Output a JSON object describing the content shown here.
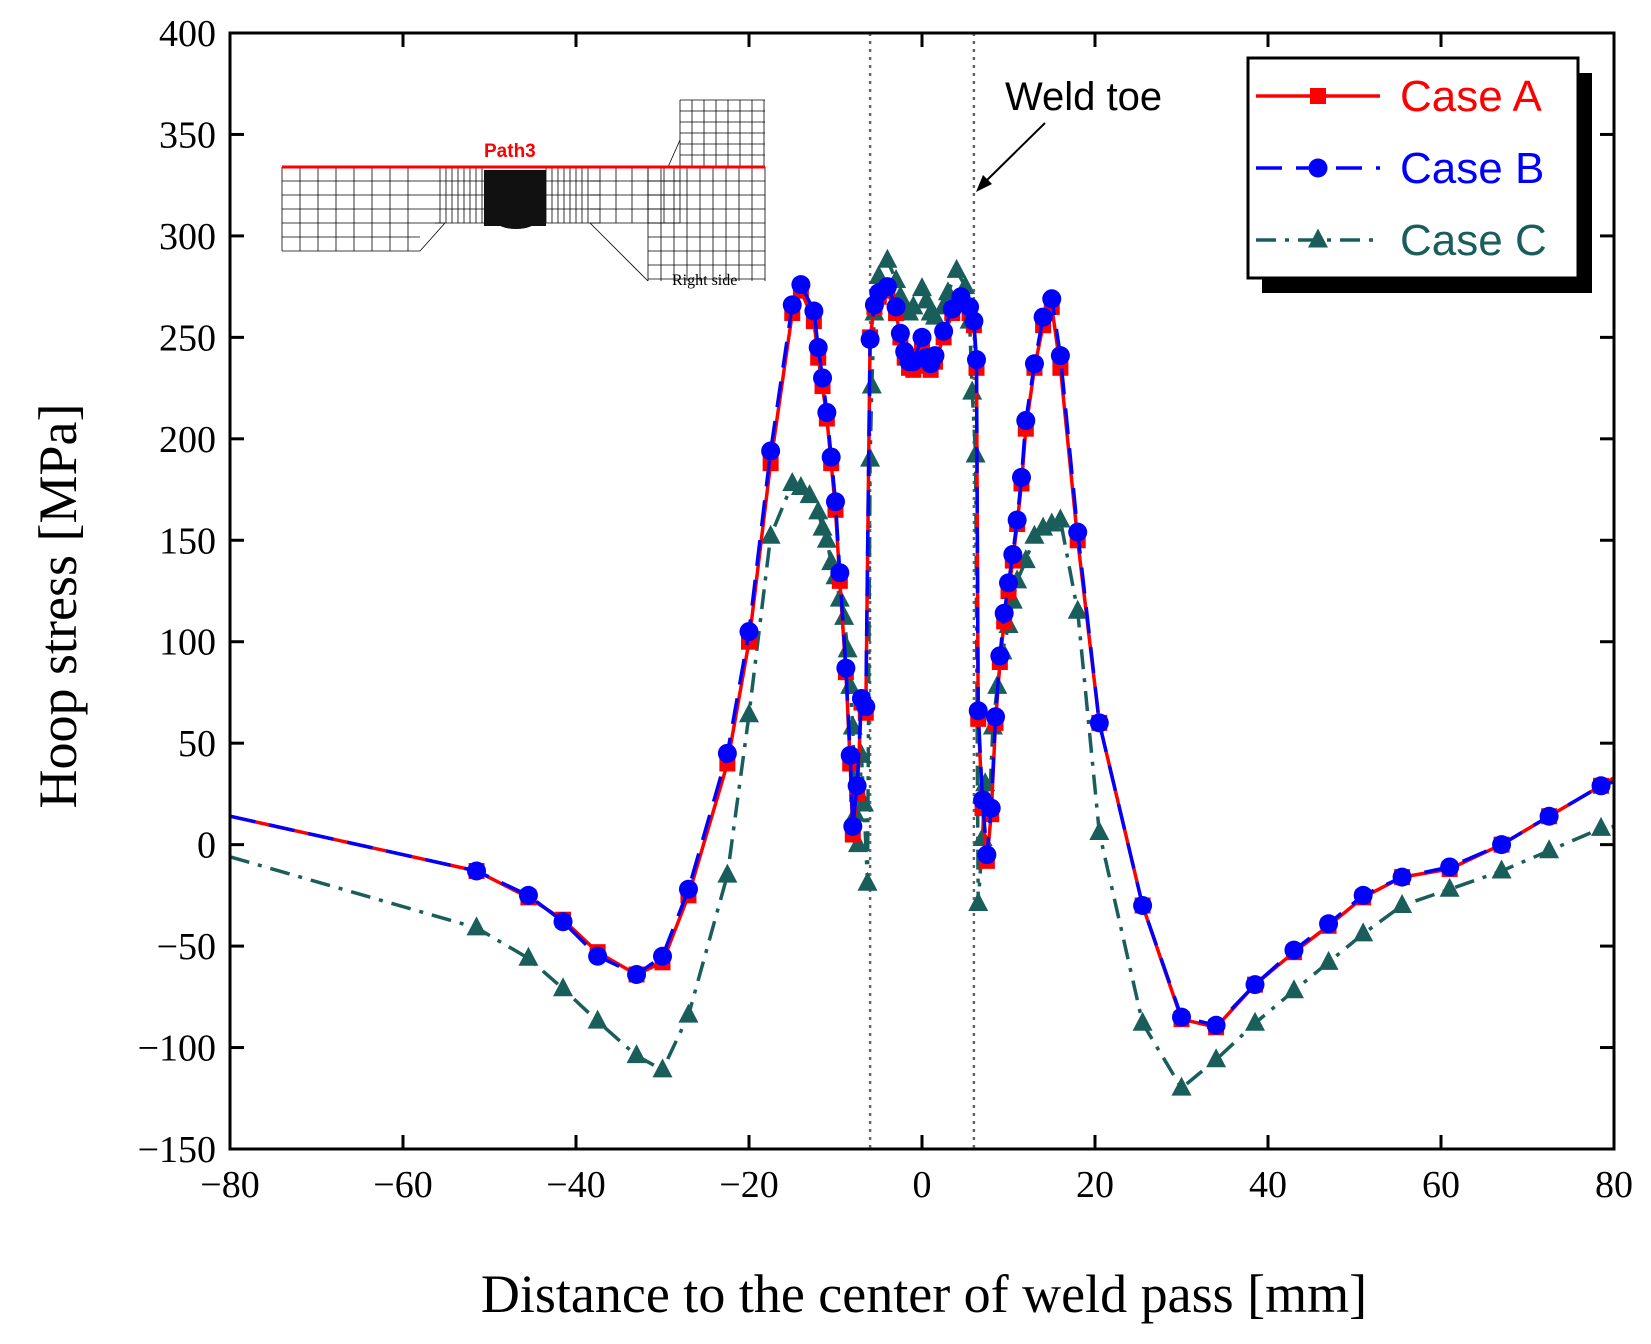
{
  "chart_data": {
    "type": "line",
    "title": "",
    "xlabel": "Distance to the center of weld pass [mm]",
    "ylabel": "Hoop stress [MPa]",
    "xlim": [
      -80,
      80
    ],
    "ylim": [
      -150,
      400
    ],
    "xticks": [
      -80,
      -60,
      -40,
      -20,
      0,
      20,
      40,
      60,
      80
    ],
    "yticks": [
      -150,
      -100,
      -50,
      0,
      50,
      100,
      150,
      200,
      250,
      300,
      350,
      400
    ],
    "xtick_labels": [
      "−80",
      "−60",
      "−40",
      "−20",
      "0",
      "20",
      "40",
      "60",
      "80"
    ],
    "ytick_labels": [
      "−150",
      "−100",
      "−50",
      "0",
      "50",
      "100",
      "150",
      "200",
      "250",
      "300",
      "350",
      "400"
    ],
    "grid": false,
    "legend_position": "top-right",
    "reference_lines_x": [
      -6,
      6
    ],
    "annotation": {
      "text": "Weld toe",
      "points_to_x": 6,
      "points_to_y": 315
    },
    "inset": {
      "path_label": "Path3",
      "side_label": "Right side"
    },
    "series": [
      {
        "name": "Case A",
        "color": "#ff0000",
        "marker": "square",
        "dash": "solid",
        "points": [
          [
            -80,
            14
          ],
          [
            -51.5,
            -13
          ],
          [
            -45.5,
            -26
          ],
          [
            -41.5,
            -37
          ],
          [
            -37.5,
            -53
          ],
          [
            -33,
            -64
          ],
          [
            -30,
            -58
          ],
          [
            -27,
            -25
          ],
          [
            -22.5,
            40
          ],
          [
            -20,
            100
          ],
          [
            -17.5,
            188
          ],
          [
            -15,
            262
          ],
          [
            -14,
            273
          ],
          [
            -12.5,
            258
          ],
          [
            -12,
            240
          ],
          [
            -11.5,
            226
          ],
          [
            -11,
            210
          ],
          [
            -10.5,
            188
          ],
          [
            -10,
            165
          ],
          [
            -9.5,
            130
          ],
          [
            -8.8,
            85
          ],
          [
            -8.3,
            40
          ],
          [
            -8,
            5
          ],
          [
            -7.5,
            25
          ],
          [
            -7,
            70
          ],
          [
            -6.5,
            65
          ],
          [
            -6,
            250
          ],
          [
            -5.5,
            265
          ],
          [
            -5,
            270
          ],
          [
            -4,
            273
          ],
          [
            -3,
            262
          ],
          [
            -2.5,
            250
          ],
          [
            -2,
            240
          ],
          [
            -1.5,
            235
          ],
          [
            -1,
            234
          ],
          [
            0,
            244
          ],
          [
            0.5,
            236
          ],
          [
            1,
            234
          ],
          [
            1.5,
            238
          ],
          [
            2.5,
            250
          ],
          [
            3.5,
            262
          ],
          [
            4.5,
            268
          ],
          [
            5.5,
            262
          ],
          [
            6,
            256
          ],
          [
            6.3,
            235
          ],
          [
            6.5,
            62
          ],
          [
            7,
            18
          ],
          [
            7.5,
            -8
          ],
          [
            8,
            15
          ],
          [
            8.5,
            60
          ],
          [
            9,
            90
          ],
          [
            9.5,
            110
          ],
          [
            10,
            125
          ],
          [
            10.5,
            140
          ],
          [
            11,
            158
          ],
          [
            11.5,
            178
          ],
          [
            12,
            205
          ],
          [
            13,
            235
          ],
          [
            14,
            256
          ],
          [
            15,
            265
          ],
          [
            16,
            235
          ],
          [
            18,
            150
          ],
          [
            20.5,
            60
          ],
          [
            25.5,
            -30
          ],
          [
            30,
            -86
          ],
          [
            34,
            -90
          ],
          [
            38.5,
            -69
          ],
          [
            43,
            -53
          ],
          [
            47,
            -40
          ],
          [
            51,
            -26
          ],
          [
            55.5,
            -16
          ],
          [
            61,
            -12
          ],
          [
            67,
            0
          ],
          [
            72.5,
            14
          ],
          [
            78.5,
            29
          ],
          [
            80,
            33
          ]
        ]
      },
      {
        "name": "Case B",
        "color": "#0000ff",
        "marker": "circle",
        "dash": "dashed",
        "points": [
          [
            -80,
            14
          ],
          [
            -51.5,
            -13
          ],
          [
            -45.5,
            -25
          ],
          [
            -41.5,
            -38
          ],
          [
            -37.5,
            -55
          ],
          [
            -33,
            -64
          ],
          [
            -30,
            -55
          ],
          [
            -27,
            -22
          ],
          [
            -22.5,
            45
          ],
          [
            -20,
            105
          ],
          [
            -17.5,
            194
          ],
          [
            -15,
            266
          ],
          [
            -14,
            276
          ],
          [
            -12.5,
            263
          ],
          [
            -12,
            245
          ],
          [
            -11.5,
            230
          ],
          [
            -11,
            213
          ],
          [
            -10.5,
            191
          ],
          [
            -10,
            169
          ],
          [
            -9.5,
            134
          ],
          [
            -8.8,
            87
          ],
          [
            -8.3,
            44
          ],
          [
            -8,
            9
          ],
          [
            -7.5,
            29
          ],
          [
            -7,
            72
          ],
          [
            -6.5,
            68
          ],
          [
            -6,
            249
          ],
          [
            -5.5,
            266
          ],
          [
            -5,
            272
          ],
          [
            -4,
            275
          ],
          [
            -3,
            265
          ],
          [
            -2.5,
            252
          ],
          [
            -2,
            243
          ],
          [
            -1.5,
            238
          ],
          [
            -1,
            238
          ],
          [
            0,
            250
          ],
          [
            0.5,
            240
          ],
          [
            1,
            237
          ],
          [
            1.5,
            241
          ],
          [
            2.5,
            253
          ],
          [
            3.5,
            264
          ],
          [
            4.5,
            270
          ],
          [
            5.5,
            265
          ],
          [
            6,
            258
          ],
          [
            6.3,
            239
          ],
          [
            6.5,
            66
          ],
          [
            7,
            22
          ],
          [
            7.5,
            -5
          ],
          [
            8,
            18
          ],
          [
            8.5,
            63
          ],
          [
            9,
            93
          ],
          [
            9.5,
            114
          ],
          [
            10,
            129
          ],
          [
            10.5,
            143
          ],
          [
            11,
            160
          ],
          [
            11.5,
            181
          ],
          [
            12,
            209
          ],
          [
            13,
            237
          ],
          [
            14,
            260
          ],
          [
            15,
            269
          ],
          [
            16,
            241
          ],
          [
            18,
            154
          ],
          [
            20.5,
            60
          ],
          [
            25.5,
            -30
          ],
          [
            30,
            -85
          ],
          [
            34,
            -89
          ],
          [
            38.5,
            -69
          ],
          [
            43,
            -52
          ],
          [
            47,
            -39
          ],
          [
            51,
            -25
          ],
          [
            55.5,
            -16
          ],
          [
            61,
            -11
          ],
          [
            67,
            0
          ],
          [
            72.5,
            14
          ],
          [
            78.5,
            29
          ],
          [
            80,
            31
          ]
        ]
      },
      {
        "name": "Case C",
        "color": "#1a5e5c",
        "marker": "triangle",
        "dash": "dashdot",
        "points": [
          [
            -80,
            -6
          ],
          [
            -51.5,
            -41
          ],
          [
            -45.5,
            -56
          ],
          [
            -41.5,
            -71
          ],
          [
            -37.5,
            -87
          ],
          [
            -33,
            -104
          ],
          [
            -30,
            -111
          ],
          [
            -27,
            -84
          ],
          [
            -22.5,
            -15
          ],
          [
            -20,
            64
          ],
          [
            -17.5,
            152
          ],
          [
            -15,
            178
          ],
          [
            -14,
            176
          ],
          [
            -13,
            172
          ],
          [
            -12,
            164
          ],
          [
            -11.5,
            156
          ],
          [
            -11,
            150
          ],
          [
            -10.5,
            139
          ],
          [
            -10,
            132
          ],
          [
            -9.5,
            121
          ],
          [
            -9,
            112
          ],
          [
            -8.6,
            96
          ],
          [
            -8.3,
            78
          ],
          [
            -8,
            58
          ],
          [
            -7.7,
            15
          ],
          [
            -7.4,
            0
          ],
          [
            -7,
            44
          ],
          [
            -6.7,
            20
          ],
          [
            -6.3,
            -19
          ],
          [
            -6,
            190
          ],
          [
            -5.8,
            226
          ],
          [
            -5.5,
            262
          ],
          [
            -5,
            280
          ],
          [
            -4,
            288
          ],
          [
            -3,
            278
          ],
          [
            -2.5,
            270
          ],
          [
            -2,
            265
          ],
          [
            -1.5,
            262
          ],
          [
            -1,
            265
          ],
          [
            0,
            274
          ],
          [
            0.5,
            268
          ],
          [
            1,
            262
          ],
          [
            1.5,
            260
          ],
          [
            2.5,
            265
          ],
          [
            3,
            272
          ],
          [
            4,
            283
          ],
          [
            5,
            275
          ],
          [
            5.5,
            258
          ],
          [
            5.8,
            223
          ],
          [
            6.2,
            192
          ],
          [
            6.5,
            -29
          ],
          [
            7,
            3
          ],
          [
            7.3,
            30
          ],
          [
            7.8,
            20
          ],
          [
            8.2,
            58
          ],
          [
            8.7,
            78
          ],
          [
            9.3,
            95
          ],
          [
            10,
            108
          ],
          [
            10.5,
            120
          ],
          [
            11,
            130
          ],
          [
            12,
            140
          ],
          [
            13,
            152
          ],
          [
            14,
            156
          ],
          [
            15,
            158
          ],
          [
            16,
            160
          ],
          [
            18,
            115
          ],
          [
            20.5,
            6
          ],
          [
            25.5,
            -88
          ],
          [
            30,
            -120
          ],
          [
            34,
            -106
          ],
          [
            38.5,
            -88
          ],
          [
            43,
            -72
          ],
          [
            47,
            -58
          ],
          [
            51,
            -44
          ],
          [
            55.5,
            -30
          ],
          [
            61,
            -22
          ],
          [
            67,
            -13
          ],
          [
            72.5,
            -3
          ],
          [
            78.5,
            8
          ],
          [
            80,
            9
          ]
        ]
      }
    ]
  }
}
